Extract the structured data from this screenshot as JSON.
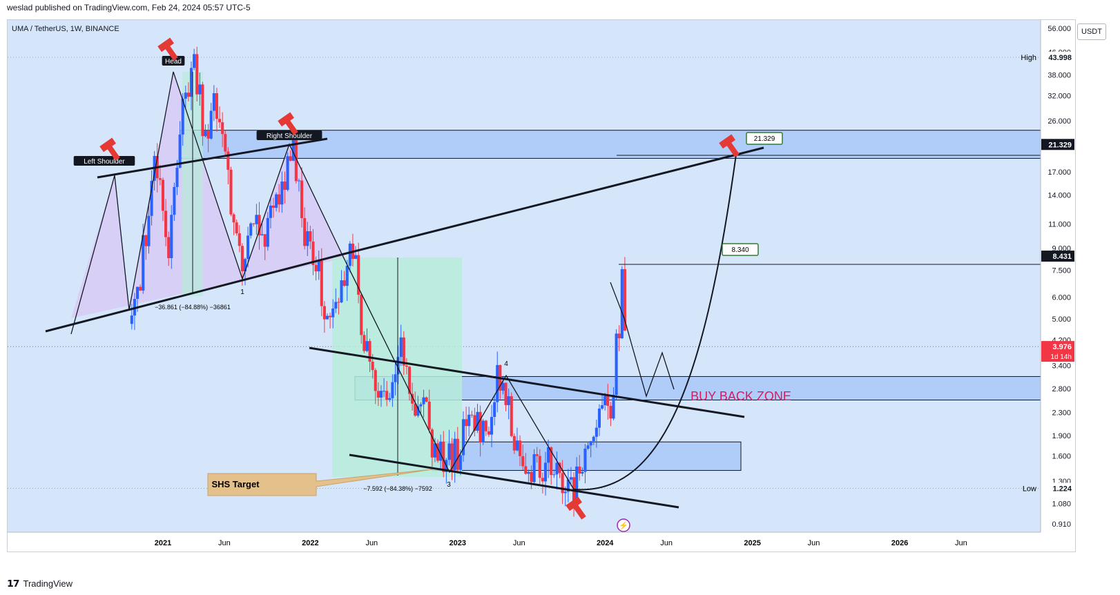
{
  "header": {
    "publisher": "weslad published on TradingView.com, Feb 24, 2024 05:57 UTC-5"
  },
  "symbol": {
    "title": "UMA / TetherUS, 1W, BINANCE"
  },
  "price_axis": {
    "currency_button": "USDT",
    "ticks": [
      "56.000",
      "46.000",
      "38.000",
      "32.000",
      "26.000",
      "17.000",
      "14.000",
      "11.000",
      "9.000",
      "7.500",
      "6.000",
      "5.000",
      "4.200",
      "3.400",
      "2.800",
      "2.300",
      "1.900",
      "1.600",
      "1.300",
      "1.080",
      "0.910"
    ],
    "badges": {
      "high_label": "High",
      "high_value": "43.998",
      "level_top": "21.329",
      "level_mid": "8.431",
      "current": "3.976",
      "current_countdown": "1d 14h",
      "low_label": "Low",
      "low_value": "1.224"
    }
  },
  "time_axis": {
    "labels": [
      "2021",
      "Jun",
      "2022",
      "Jun",
      "2023",
      "Jun",
      "2024",
      "Jun",
      "2025",
      "Jun",
      "2026",
      "Jun"
    ]
  },
  "annotations": {
    "left_shoulder": "Left Shoulder",
    "head": "Head",
    "right_shoulder": "Right Shoulder",
    "measure_1": "−36.861 (−84.88%) −36861",
    "measure_2": "−7.592 (−84.38%) −7592",
    "wave_1": "1",
    "wave_3": "3",
    "wave_4": "4",
    "shs_target": "SHS Target",
    "buy_back_zone": "BUY BACK ZONE",
    "callout_top": "21.329",
    "callout_mid": "8.340"
  },
  "colors": {
    "up": "#2962ff",
    "down": "#f23645",
    "zone": "#90b8f5",
    "pattern_fill": "#d8c7f5",
    "target_fill": "#b7ebd9",
    "buy_back_text": "#d81b60",
    "shs_fill": "#e4c08a",
    "background": "#d6e6fa"
  },
  "chart_data": {
    "type": "candlestick",
    "symbol": "UMA / TetherUS",
    "interval": "1W",
    "exchange": "BINANCE",
    "y_scale": "log",
    "ylim": [
      0.85,
      60
    ],
    "x_ticks": [
      "2021",
      "Jun",
      "2022",
      "Jun",
      "2023",
      "Jun",
      "2024",
      "Jun",
      "2025",
      "Jun",
      "2026",
      "Jun"
    ],
    "key_levels": {
      "high": 43.998,
      "resistance": 21.329,
      "mid": 8.431,
      "current": 3.976,
      "low": 1.224
    },
    "zones": [
      {
        "name": "top zone",
        "low": 19.0,
        "high": 24.0
      },
      {
        "name": "BUY BACK ZONE",
        "low": 2.55,
        "high": 3.1
      },
      {
        "name": "lower zone",
        "low": 1.42,
        "high": 1.8
      }
    ],
    "price_path": [
      [
        "2020-10",
        4.8
      ],
      [
        "2020-11",
        9.0
      ],
      [
        "2020-12",
        18.5
      ],
      [
        "2021-01",
        7.5
      ],
      [
        "2021-02",
        28.0
      ],
      [
        "2021-03",
        43.998
      ],
      [
        "2021-04",
        22.0
      ],
      [
        "2021-05",
        31.0
      ],
      [
        "2021-06",
        14.0
      ],
      [
        "2021-07",
        8.0
      ],
      [
        "2021-08",
        13.0
      ],
      [
        "2021-09",
        10.0
      ],
      [
        "2021-10",
        13.5
      ],
      [
        "2021-11",
        22.0
      ],
      [
        "2021-12",
        11.0
      ],
      [
        "2022-01",
        8.5
      ],
      [
        "2022-02",
        5.0
      ],
      [
        "2022-03",
        6.5
      ],
      [
        "2022-04",
        9.0
      ],
      [
        "2022-05",
        4.0
      ],
      [
        "2022-06",
        2.6
      ],
      [
        "2022-07",
        2.4
      ],
      [
        "2022-08",
        3.8
      ],
      [
        "2022-09",
        2.6
      ],
      [
        "2022-10",
        2.2
      ],
      [
        "2022-11",
        1.6
      ],
      [
        "2022-12",
        1.5
      ],
      [
        "2023-01",
        1.9
      ],
      [
        "2023-02",
        2.2
      ],
      [
        "2023-03",
        2.1
      ],
      [
        "2023-04",
        3.2
      ],
      [
        "2023-05",
        2.0
      ],
      [
        "2023-06",
        1.6
      ],
      [
        "2023-07",
        1.5
      ],
      [
        "2023-08",
        1.5
      ],
      [
        "2023-09",
        1.3
      ],
      [
        "2023-10",
        1.224
      ],
      [
        "2023-11",
        1.7
      ],
      [
        "2023-12",
        2.2
      ],
      [
        "2024-01",
        2.4
      ],
      [
        "2024-02",
        7.2
      ],
      [
        "2024-02-24",
        3.976
      ]
    ]
  }
}
